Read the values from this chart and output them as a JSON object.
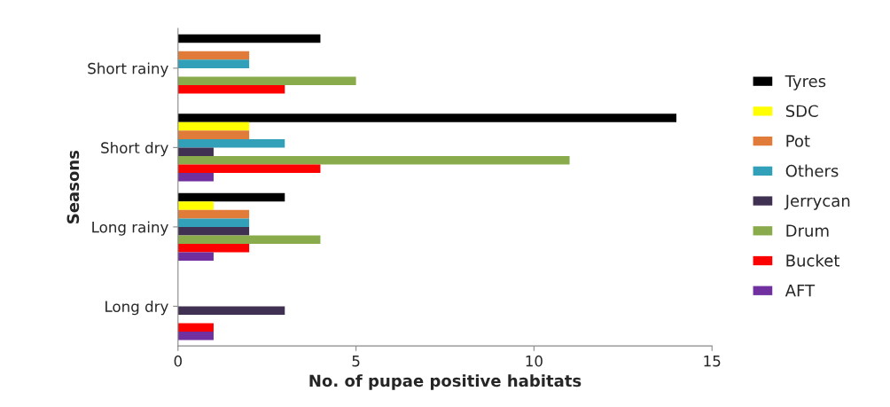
{
  "chart_data": {
    "type": "bar",
    "orientation": "horizontal",
    "xlabel": "No. of pupae positive habitats",
    "ylabel": "Seasons",
    "categories": [
      "Short rainy",
      "Short dry",
      "Long rainy",
      "Long dry"
    ],
    "series": [
      {
        "name": "Tyres",
        "color": "#000000",
        "values": [
          4,
          14,
          3,
          null
        ]
      },
      {
        "name": "SDC",
        "color": "#ffff00",
        "values": [
          null,
          2,
          1,
          null
        ]
      },
      {
        "name": "Pot",
        "color": "#e07b39",
        "values": [
          2,
          2,
          2,
          null
        ]
      },
      {
        "name": "Others",
        "color": "#31a0b8",
        "values": [
          2,
          3,
          2,
          null
        ]
      },
      {
        "name": "Jerrycan",
        "color": "#403152",
        "values": [
          null,
          1,
          2,
          3
        ]
      },
      {
        "name": "Drum",
        "color": "#8aab4b",
        "values": [
          5,
          11,
          4,
          null
        ]
      },
      {
        "name": "Bucket",
        "color": "#ff0000",
        "values": [
          3,
          4,
          2,
          1
        ]
      },
      {
        "name": "AFT",
        "color": "#7030a0",
        "values": [
          null,
          1,
          1,
          1
        ]
      }
    ],
    "xlim": [
      0,
      15
    ],
    "xticks": [
      0,
      5,
      10,
      15
    ],
    "grid": false,
    "legend": "right"
  }
}
